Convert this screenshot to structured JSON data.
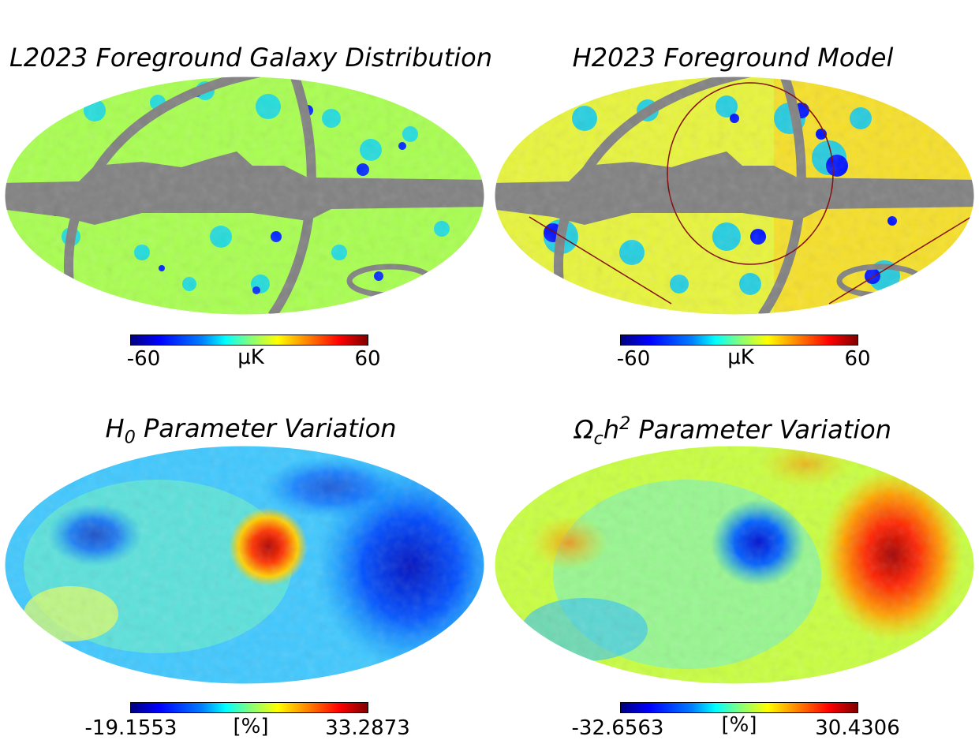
{
  "panels": [
    {
      "title": "L2023 Foreground Galaxy Distribution",
      "cmin": "-60",
      "cmax": "60",
      "unit": "μK"
    },
    {
      "title_parts": [
        "H2023 Foreground Model"
      ],
      "cmin": "-60",
      "cmax": "60",
      "unit": "μK"
    },
    {
      "title_main": "H",
      "title_sub": "0",
      "title_rest": " Parameter Variation",
      "cmin": "-19.1553",
      "cmax": "33.2873",
      "unit": "[%]"
    },
    {
      "title_main": "Ω",
      "title_sub": "c",
      "title_h": "h",
      "title_sup": "2",
      "title_rest": " Parameter Variation",
      "cmin": "-32.6563",
      "cmax": "30.4306",
      "unit": "[%]"
    }
  ],
  "colors": {
    "mask": "#808080",
    "background_green": "#a8ff4f",
    "cmap": "jet"
  }
}
